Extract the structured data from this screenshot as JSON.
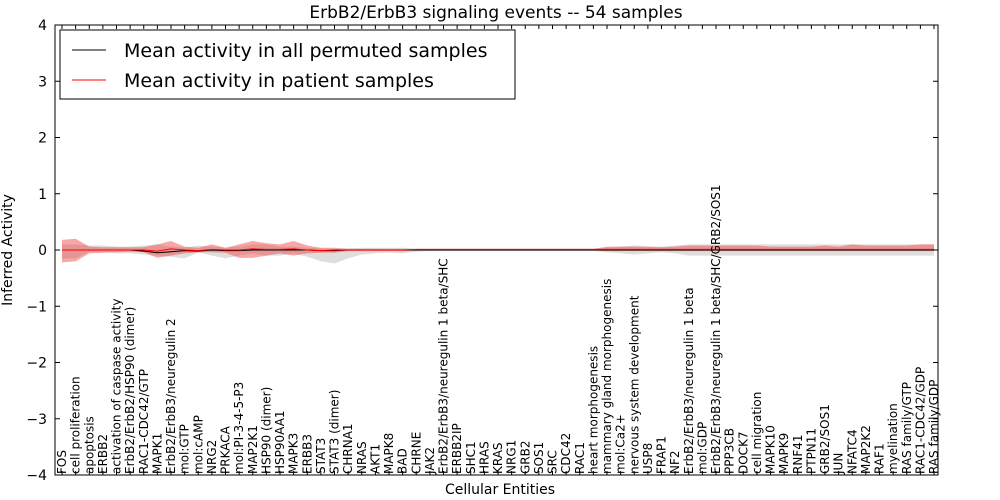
{
  "chart_data": {
    "type": "line",
    "title": "ErbB2/ErbB3 signaling events -- 54 samples",
    "xlabel": "Cellular Entities",
    "ylabel": "Inferred Activity",
    "ylim": [
      -4,
      4
    ],
    "yticks": [
      "4",
      "3",
      "2",
      "1",
      "0",
      "−1",
      "−2",
      "−3",
      "−4"
    ],
    "grid": false,
    "legend_position": "top-left",
    "categories": [
      "FOS",
      "cell proliferation",
      "apoptosis",
      "ERBB2",
      "activation of caspase activity",
      "ErbB2/ErbB2/HSP90 (dimer)",
      "RAC1-CDC42/GTP",
      "MAPK1",
      "ErbB2/ErbB3/neuregulin 2",
      "mol:GTP",
      "mol:cAMP",
      "NRG2",
      "PRKACA",
      "mol:PI-3-4-5-P3",
      "MAP2K1",
      "HSP90 (dimer)",
      "HSP90AA1",
      "MAPK3",
      "ERBB3",
      "STAT3",
      "STAT3 (dimer)",
      "CHRNA1",
      "NRAS",
      "AKT1",
      "MAPK8",
      "BAD",
      "CHRNE",
      "JAK2",
      "ErbB2/ErbB3/neuregulin 1 beta/SHC",
      "ERBB2IP",
      "SHC1",
      "HRAS",
      "KRAS",
      "NRG1",
      "GRB2",
      "SOS1",
      "SRC",
      "CDC42",
      "RAC1",
      "heart morphogenesis",
      "mammary gland morphogenesis",
      "mol:Ca2+",
      "nervous system development",
      "USP8",
      "FRAP1",
      "NF2",
      "ErbB2/ErbB3/neuregulin 1 beta",
      "mol:GDP",
      "ErbB2/ErbB3/neuregulin 1 beta/SHC/GRB2/SOS1",
      "PPP3CB",
      "DOCK7",
      "cell migration",
      "MAPK10",
      "MAPK9",
      "RNF41",
      "PTPN11",
      "GRB2/SOS1",
      "JUN",
      "NFATC4",
      "MAP2K2",
      "RAF1",
      "myelination",
      "RAS family/GTP",
      "RAC1-CDC42/GDP",
      "RAS family/GDP"
    ],
    "series": [
      {
        "name": "Mean activity in all permuted samples",
        "color": "#000000",
        "values": [
          0,
          0,
          0,
          0,
          0,
          0,
          -0.02,
          -0.05,
          -0.03,
          -0.01,
          -0.02,
          0,
          -0.01,
          -0.01,
          0,
          0,
          0,
          0,
          0,
          -0.01,
          -0.01,
          0,
          0,
          0,
          0,
          0,
          0,
          0,
          0,
          0,
          0,
          0,
          0,
          0,
          0,
          0,
          0,
          0,
          0,
          0,
          0,
          0,
          0,
          0,
          0,
          0,
          0,
          0,
          0,
          0,
          0,
          0,
          0,
          0,
          0,
          0,
          0,
          0,
          0,
          0,
          0,
          0,
          0,
          0,
          0
        ],
        "band_lower": [
          -0.15,
          -0.15,
          -0.03,
          -0.03,
          -0.06,
          -0.06,
          -0.08,
          -0.1,
          -0.12,
          -0.15,
          -0.04,
          -0.1,
          -0.15,
          -0.1,
          -0.06,
          -0.1,
          -0.1,
          -0.06,
          -0.12,
          -0.2,
          -0.24,
          -0.15,
          -0.08,
          -0.06,
          -0.05,
          -0.06,
          -0.03,
          -0.02,
          -0.02,
          -0.02,
          -0.02,
          -0.02,
          -0.02,
          -0.02,
          -0.02,
          -0.02,
          -0.02,
          -0.02,
          -0.02,
          -0.02,
          -0.04,
          -0.06,
          -0.08,
          -0.06,
          -0.04,
          -0.06,
          -0.1,
          -0.1,
          -0.1,
          -0.1,
          -0.1,
          -0.1,
          -0.1,
          -0.1,
          -0.1,
          -0.1,
          -0.1,
          -0.1,
          -0.1,
          -0.1,
          -0.1,
          -0.1,
          -0.1,
          -0.1,
          -0.1
        ],
        "band_upper": [
          0.1,
          0.1,
          0.08,
          0.08,
          0.06,
          0.06,
          0.08,
          0.1,
          0.06,
          0.04,
          0.08,
          0.06,
          0.04,
          0.06,
          0.1,
          0.1,
          0.06,
          0.06,
          0.04,
          0.03,
          0.02,
          0.03,
          0.04,
          0.04,
          0.04,
          0.04,
          0.02,
          0.02,
          0.02,
          0.02,
          0.02,
          0.02,
          0.02,
          0.02,
          0.02,
          0.02,
          0.02,
          0.02,
          0.02,
          0.02,
          0.04,
          0.06,
          0.08,
          0.06,
          0.06,
          0.08,
          0.1,
          0.1,
          0.1,
          0.1,
          0.1,
          0.1,
          0.1,
          0.1,
          0.1,
          0.1,
          0.1,
          0.1,
          0.1,
          0.1,
          0.1,
          0.1,
          0.1,
          0.1,
          0.1
        ]
      },
      {
        "name": "Mean activity in patient samples",
        "color": "#ff0000",
        "values": [
          0,
          0,
          0,
          0,
          0,
          0,
          0,
          -0.02,
          0.02,
          0,
          -0.01,
          0.01,
          0,
          0,
          0.02,
          0.01,
          0.01,
          0.02,
          0,
          -0.01,
          0,
          0,
          0,
          0,
          0,
          0,
          0.01,
          0.01,
          0.01,
          0.01,
          0.01,
          0.01,
          0.01,
          0.01,
          0.01,
          0.01,
          0.01,
          0.01,
          0.01,
          0.01,
          0.01,
          0.01,
          0.01,
          0.01,
          0.01,
          0.01,
          0.01,
          0.01,
          0.01,
          0.01,
          0.01,
          0.01,
          0.01,
          0.01,
          0.01,
          0.01,
          0.01,
          0.01,
          0.01,
          0.01,
          0.01,
          0.01,
          0.01,
          0.01,
          0.01
        ],
        "band_lower": [
          -0.22,
          -0.2,
          -0.06,
          -0.05,
          -0.04,
          -0.03,
          -0.04,
          -0.14,
          -0.1,
          -0.06,
          -0.04,
          -0.04,
          -0.05,
          -0.14,
          -0.14,
          -0.1,
          -0.06,
          -0.1,
          -0.06,
          -0.05,
          -0.05,
          -0.02,
          -0.02,
          -0.02,
          -0.02,
          -0.02,
          -0.01,
          -0.01,
          -0.01,
          -0.01,
          -0.01,
          -0.01,
          -0.01,
          -0.01,
          -0.01,
          -0.01,
          -0.01,
          -0.01,
          -0.01,
          -0.01,
          -0.02,
          -0.02,
          -0.02,
          -0.02,
          -0.02,
          -0.02,
          -0.02,
          -0.02,
          -0.02,
          -0.02,
          -0.02,
          -0.02,
          -0.02,
          -0.02,
          -0.02,
          -0.02,
          -0.02,
          -0.02,
          -0.02,
          -0.02,
          -0.02,
          -0.02,
          -0.02,
          -0.02,
          -0.02
        ],
        "band_upper": [
          0.18,
          0.2,
          0.06,
          0.05,
          0.05,
          0.05,
          0.05,
          0.1,
          0.16,
          0.06,
          0.04,
          0.1,
          0.04,
          0.1,
          0.16,
          0.12,
          0.1,
          0.16,
          0.08,
          0.04,
          0.04,
          0.02,
          0.02,
          0.02,
          0.02,
          0.02,
          0.02,
          0.02,
          0.02,
          0.02,
          0.02,
          0.02,
          0.02,
          0.02,
          0.02,
          0.02,
          0.02,
          0.02,
          0.02,
          0.02,
          0.06,
          0.06,
          0.06,
          0.06,
          0.05,
          0.06,
          0.08,
          0.08,
          0.08,
          0.08,
          0.08,
          0.08,
          0.06,
          0.06,
          0.06,
          0.06,
          0.08,
          0.06,
          0.1,
          0.08,
          0.08,
          0.08,
          0.08,
          0.1,
          0.1
        ]
      }
    ]
  }
}
